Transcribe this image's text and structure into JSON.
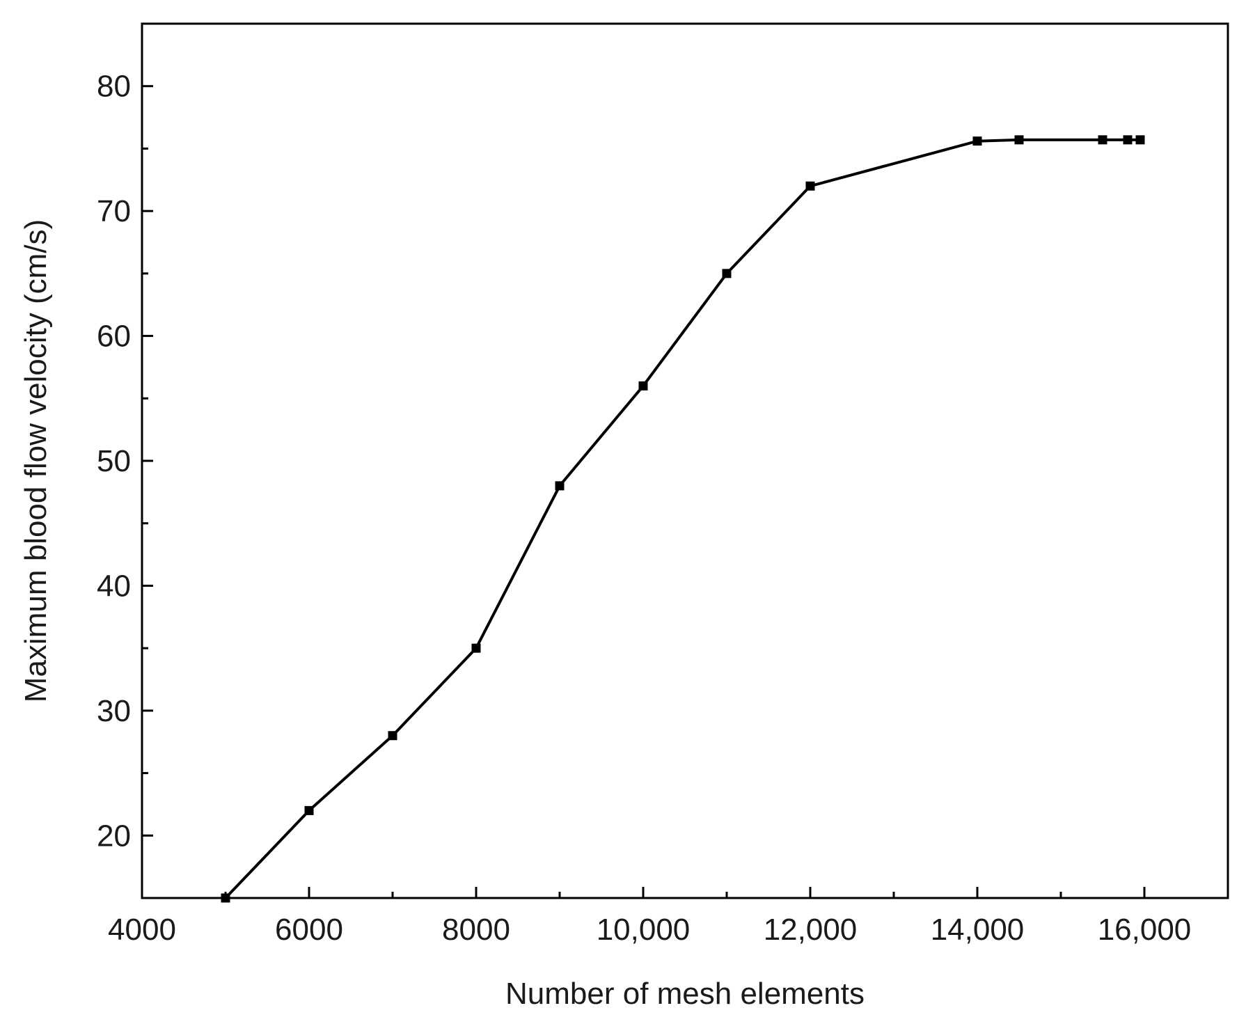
{
  "chart_data": {
    "type": "line",
    "title": "",
    "xlabel": "Number of mesh elements",
    "ylabel": "Maximum blood flow velocity (cm/s)",
    "xlim": [
      4000,
      17000
    ],
    "ylim": [
      15,
      85
    ],
    "x_ticks": [
      4000,
      6000,
      8000,
      10000,
      12000,
      14000,
      16000
    ],
    "x_tick_labels": [
      "4000",
      "6000",
      "8000",
      "10,000",
      "12,000",
      "14,000",
      "16,000"
    ],
    "y_ticks": [
      20,
      30,
      40,
      50,
      60,
      70,
      80
    ],
    "y_tick_labels": [
      "20",
      "30",
      "40",
      "50",
      "60",
      "70",
      "80"
    ],
    "grid": false,
    "marker": "square",
    "line_color": "#000000",
    "series": [
      {
        "x": [
          5000,
          6000,
          7000,
          8000,
          9000,
          10000,
          11000,
          12000,
          14000,
          14500,
          15500,
          15800,
          15950
        ],
        "y": [
          15,
          22,
          28,
          35,
          48,
          56,
          65,
          72,
          75.6,
          75.7,
          75.7,
          75.7,
          75.7
        ]
      }
    ]
  }
}
